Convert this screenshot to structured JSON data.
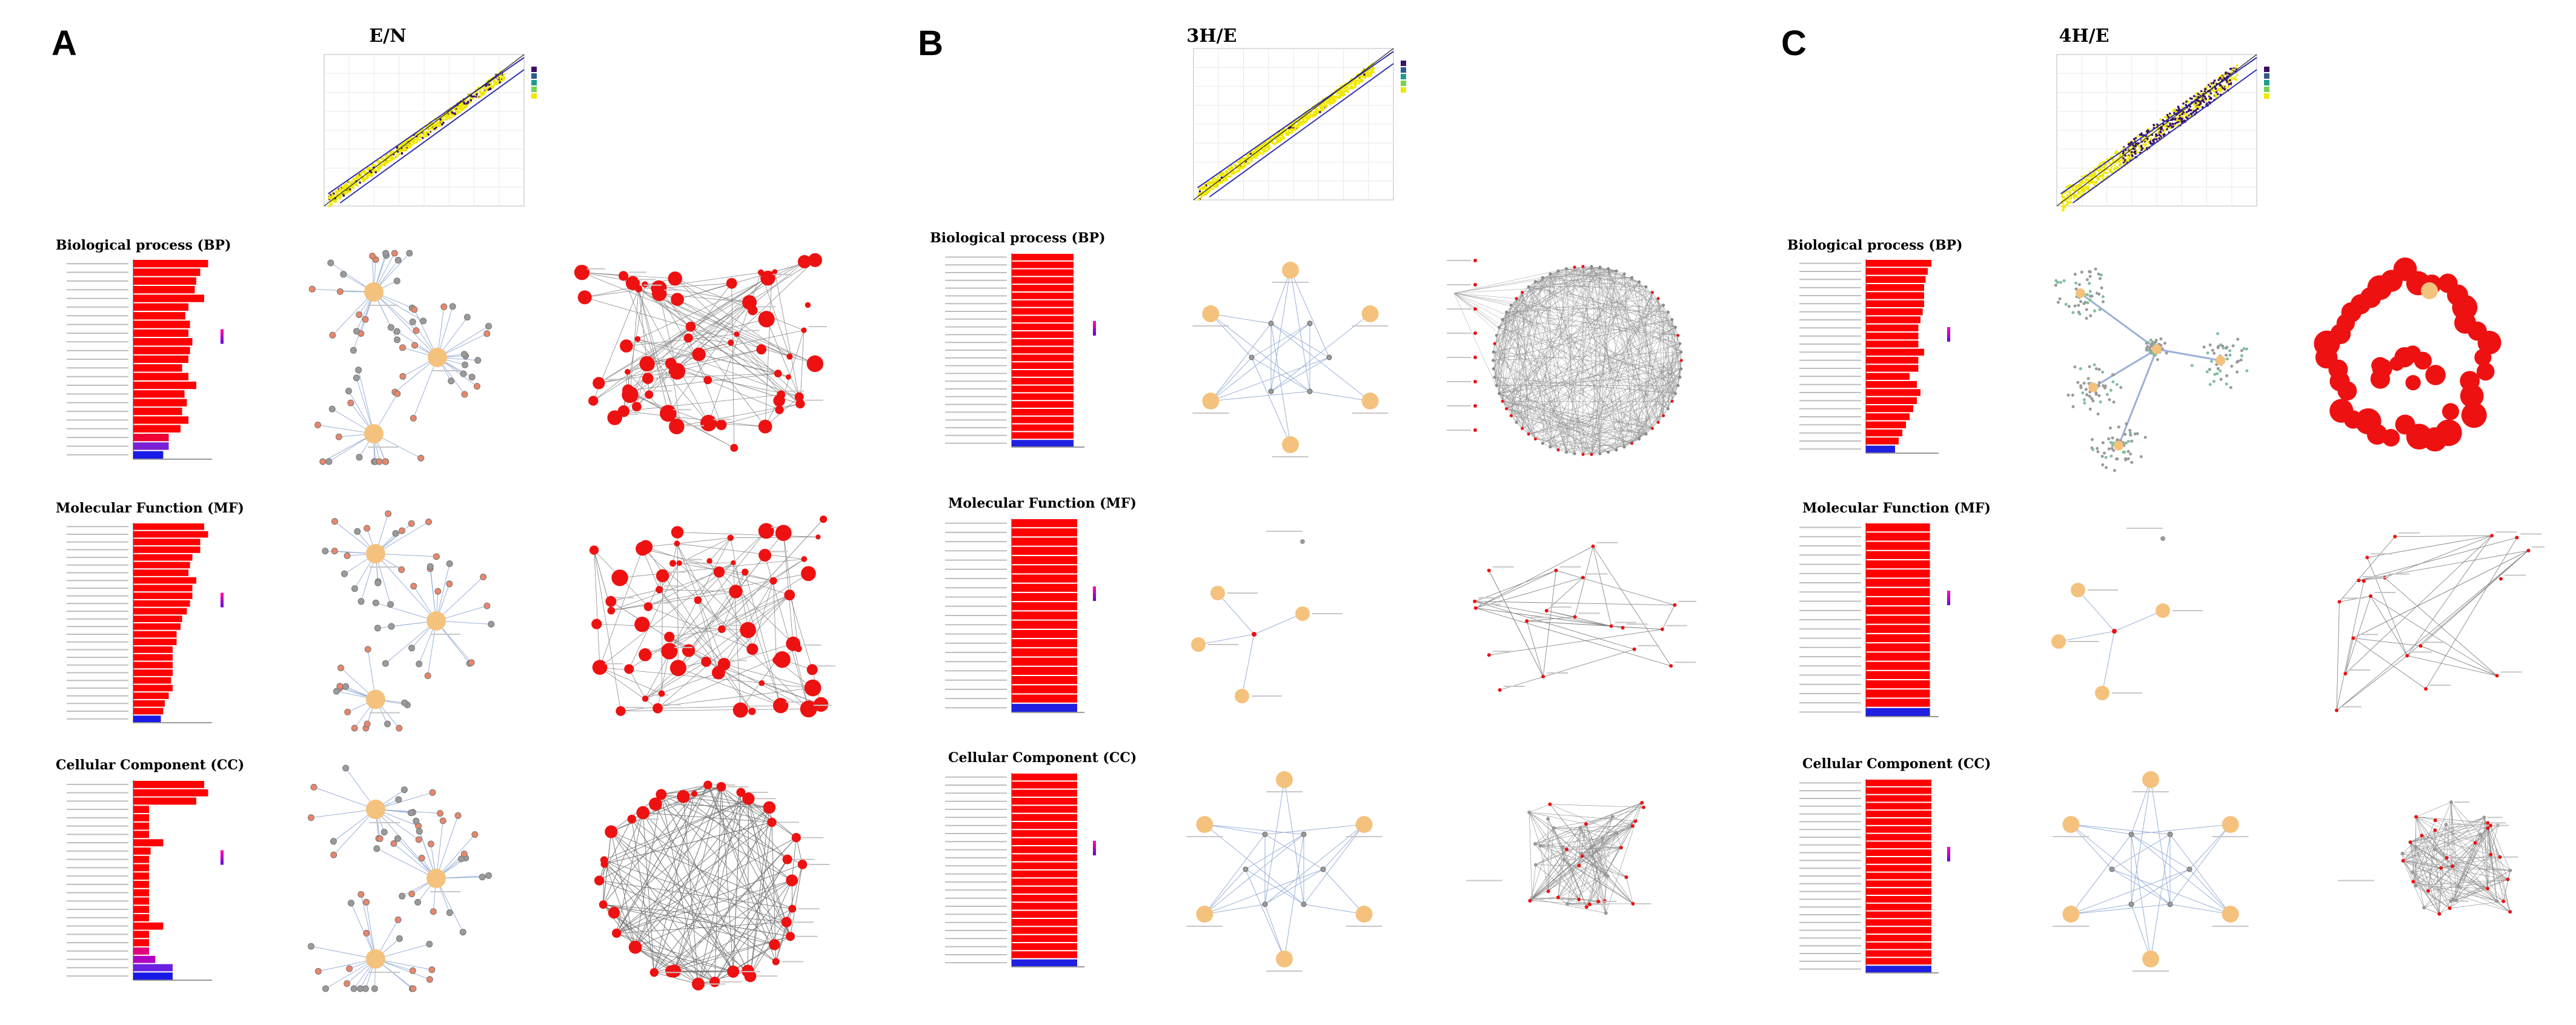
{
  "figure": {
    "panels": [
      {
        "letter": "A",
        "comparison": "E/N",
        "sections": [
          {
            "label": "Biological process (BP)",
            "bars": [
              0.95,
              0.85,
              0.8,
              0.78,
              0.9,
              0.7,
              0.66,
              0.72,
              0.7,
              0.75,
              0.72,
              0.7,
              0.62,
              0.7,
              0.8,
              0.65,
              0.68,
              0.62,
              0.7,
              0.6,
              0.45,
              0.45,
              0.38
            ],
            "colors": [
              "#ff0000",
              "#ff0000",
              "#ff0000",
              "#ff0000",
              "#ff0000",
              "#ff0000",
              "#ff0000",
              "#ff0000",
              "#ff0000",
              "#ff0000",
              "#ff0000",
              "#ff0000",
              "#ff0000",
              "#ff0000",
              "#ff0000",
              "#ff0000",
              "#ff0000",
              "#ff0000",
              "#ff0000",
              "#ff0000",
              "#ee0033",
              "#7a1fd6",
              "#1a1ae6"
            ]
          },
          {
            "label": "Molecular Function (MF)",
            "bars": [
              0.9,
              0.95,
              0.85,
              0.85,
              0.75,
              0.72,
              0.7,
              0.8,
              0.75,
              0.75,
              0.72,
              0.68,
              0.62,
              0.6,
              0.55,
              0.55,
              0.5,
              0.5,
              0.5,
              0.5,
              0.48,
              0.5,
              0.45,
              0.4,
              0.38,
              0.35
            ],
            "colors": [
              "#ff0000",
              "#ff0000",
              "#ff0000",
              "#ff0000",
              "#ff0000",
              "#ff0000",
              "#ff0000",
              "#ff0000",
              "#ff0000",
              "#ff0000",
              "#ff0000",
              "#ff0000",
              "#ff0000",
              "#ff0000",
              "#ff0000",
              "#ff0000",
              "#ff0000",
              "#ff0000",
              "#ff0000",
              "#ff0000",
              "#ff0000",
              "#ff0000",
              "#ff0000",
              "#ff0000",
              "#ff0000",
              "#1a1ae6"
            ]
          },
          {
            "label": "Cellular Component (CC)",
            "bars": [
              0.9,
              0.95,
              0.8,
              0.2,
              0.2,
              0.2,
              0.2,
              0.38,
              0.22,
              0.2,
              0.2,
              0.2,
              0.2,
              0.2,
              0.2,
              0.2,
              0.2,
              0.38,
              0.2,
              0.2,
              0.2,
              0.28,
              0.5,
              0.5
            ],
            "colors": [
              "#ff0000",
              "#ff0000",
              "#ff0000",
              "#ff0000",
              "#ff0000",
              "#ff0000",
              "#ff0000",
              "#ff0000",
              "#ff0000",
              "#ff0000",
              "#ff0000",
              "#ff0000",
              "#ff0000",
              "#ff0000",
              "#ff0000",
              "#ff0000",
              "#ff0000",
              "#ff0000",
              "#ff0000",
              "#ff0000",
              "#e0007a",
              "#b000c0",
              "#6a20e0",
              "#1a1ae6"
            ]
          }
        ]
      },
      {
        "letter": "B",
        "comparison": "3H/E",
        "sections": [
          {
            "label": "Biological process (BP)",
            "bars": [
              0.85,
              0.85,
              0.85,
              0.85,
              0.85,
              0.85,
              0.85,
              0.85,
              0.85,
              0.85,
              0.85,
              0.85,
              0.85,
              0.85,
              0.85,
              0.85,
              0.85,
              0.85,
              0.85,
              0.85,
              0.85,
              0.85,
              0.85,
              0.85,
              0.85
            ],
            "colors": [
              "#ff0000",
              "#ff0000",
              "#ff0000",
              "#ff0000",
              "#ff0000",
              "#ff0000",
              "#ff0000",
              "#ff0000",
              "#ff0000",
              "#ff0000",
              "#ff0000",
              "#ff0000",
              "#ff0000",
              "#ff0000",
              "#ff0000",
              "#ff0000",
              "#ff0000",
              "#ff0000",
              "#ff0000",
              "#ff0000",
              "#ff0000",
              "#ff0000",
              "#ff0000",
              "#ff0000",
              "#2020e0"
            ]
          },
          {
            "label": "Molecular Function (MF)",
            "bars": [
              0.9,
              0.9,
              0.9,
              0.9,
              0.9,
              0.9,
              0.9,
              0.9,
              0.9,
              0.9,
              0.9,
              0.9,
              0.9,
              0.9,
              0.9,
              0.9,
              0.9,
              0.9,
              0.9,
              0.9,
              0.9
            ],
            "colors": [
              "#ff0000",
              "#ff0000",
              "#ff0000",
              "#ff0000",
              "#ff0000",
              "#ff0000",
              "#ff0000",
              "#ff0000",
              "#ff0000",
              "#ff0000",
              "#ff0000",
              "#ff0000",
              "#ff0000",
              "#ff0000",
              "#ff0000",
              "#ff0000",
              "#ff0000",
              "#ff0000",
              "#ff0000",
              "#ff0000",
              "#2020e0"
            ]
          },
          {
            "label": "Cellular Component (CC)",
            "bars": [
              0.9,
              0.9,
              0.9,
              0.9,
              0.9,
              0.9,
              0.9,
              0.9,
              0.9,
              0.9,
              0.9,
              0.9,
              0.9,
              0.9,
              0.9,
              0.9,
              0.9,
              0.9,
              0.9,
              0.9,
              0.9,
              0.9,
              0.9,
              0.9
            ],
            "colors": [
              "#ff0000",
              "#ff0000",
              "#ff0000",
              "#ff0000",
              "#ff0000",
              "#ff0000",
              "#ff0000",
              "#ff0000",
              "#ff0000",
              "#ff0000",
              "#ff0000",
              "#ff0000",
              "#ff0000",
              "#ff0000",
              "#ff0000",
              "#ff0000",
              "#ff0000",
              "#ff0000",
              "#ff0000",
              "#ff0000",
              "#ff0000",
              "#ff0000",
              "#ff0000",
              "#2020e0"
            ]
          }
        ]
      },
      {
        "letter": "C",
        "comparison": "4H/E",
        "sections": [
          {
            "label": "Biological process (BP)",
            "bars": [
              0.9,
              0.85,
              0.82,
              0.8,
              0.8,
              0.8,
              0.78,
              0.75,
              0.72,
              0.72,
              0.72,
              0.8,
              0.72,
              0.72,
              0.6,
              0.7,
              0.75,
              0.7,
              0.65,
              0.6,
              0.55,
              0.5,
              0.45,
              0.4
            ],
            "colors": [
              "#ff0000",
              "#ff0000",
              "#ff0000",
              "#ff0000",
              "#ff0000",
              "#ff0000",
              "#ff0000",
              "#ff0000",
              "#ff0000",
              "#ff0000",
              "#ff0000",
              "#ff0000",
              "#ff0000",
              "#ff0000",
              "#ff0000",
              "#ff0000",
              "#ff0000",
              "#ff0000",
              "#ff0000",
              "#ff0000",
              "#ff0000",
              "#ff0000",
              "#ff0000",
              "#2020e0"
            ]
          },
          {
            "label": "Molecular Function (MF)",
            "bars": [
              0.88,
              0.88,
              0.88,
              0.88,
              0.88,
              0.88,
              0.88,
              0.88,
              0.88,
              0.88,
              0.88,
              0.88,
              0.88,
              0.88,
              0.88,
              0.88,
              0.88,
              0.88,
              0.88,
              0.88,
              0.88
            ],
            "colors": [
              "#ff0000",
              "#ff0000",
              "#ff0000",
              "#ff0000",
              "#ff0000",
              "#ff0000",
              "#ff0000",
              "#ff0000",
              "#ff0000",
              "#ff0000",
              "#ff0000",
              "#ff0000",
              "#ff0000",
              "#ff0000",
              "#ff0000",
              "#ff0000",
              "#ff0000",
              "#ff0000",
              "#ff0000",
              "#ff0000",
              "#2020e0"
            ]
          },
          {
            "label": "Cellular Component (CC)",
            "bars": [
              0.9,
              0.9,
              0.9,
              0.9,
              0.9,
              0.9,
              0.9,
              0.9,
              0.9,
              0.9,
              0.9,
              0.9,
              0.9,
              0.9,
              0.9,
              0.9,
              0.9,
              0.9,
              0.9,
              0.9,
              0.9,
              0.9,
              0.9,
              0.9,
              0.9
            ],
            "colors": [
              "#ff0000",
              "#ff0000",
              "#ff0000",
              "#ff0000",
              "#ff0000",
              "#ff0000",
              "#ff0000",
              "#ff0000",
              "#ff0000",
              "#ff0000",
              "#ff0000",
              "#ff0000",
              "#ff0000",
              "#ff0000",
              "#ff0000",
              "#ff0000",
              "#ff0000",
              "#ff0000",
              "#ff0000",
              "#ff0000",
              "#ff0000",
              "#ff0000",
              "#ff0000",
              "#ff0000",
              "#2020e0"
            ]
          }
        ]
      }
    ]
  },
  "colors": {
    "scatter_purple": "#3b1066",
    "scatter_yellow": "#f0e800",
    "network_red": "#ee1111",
    "network_node_beige": "#f4c27d",
    "network_gene_gray": "#9a9a9a",
    "edge_gray": "#8a8a8a",
    "edge_blue": "#9ab0d8"
  }
}
